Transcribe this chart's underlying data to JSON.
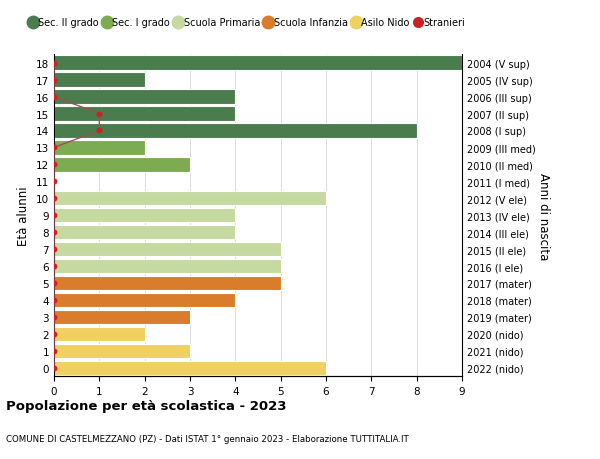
{
  "ages": [
    18,
    17,
    16,
    15,
    14,
    13,
    12,
    11,
    10,
    9,
    8,
    7,
    6,
    5,
    4,
    3,
    2,
    1,
    0
  ],
  "years": [
    "2004 (V sup)",
    "2005 (IV sup)",
    "2006 (III sup)",
    "2007 (II sup)",
    "2008 (I sup)",
    "2009 (III med)",
    "2010 (II med)",
    "2011 (I med)",
    "2012 (V ele)",
    "2013 (IV ele)",
    "2014 (III ele)",
    "2015 (II ele)",
    "2016 (I ele)",
    "2017 (mater)",
    "2018 (mater)",
    "2019 (mater)",
    "2020 (nido)",
    "2021 (nido)",
    "2022 (nido)"
  ],
  "values": [
    9,
    2,
    4,
    4,
    8,
    2,
    3,
    0,
    6,
    4,
    4,
    5,
    5,
    5,
    4,
    3,
    2,
    3,
    6
  ],
  "bar_colors": [
    "#4a7c4e",
    "#4a7c4e",
    "#4a7c4e",
    "#4a7c4e",
    "#4a7c4e",
    "#7dab52",
    "#7dab52",
    "#7dab52",
    "#c5d9a0",
    "#c5d9a0",
    "#c5d9a0",
    "#c5d9a0",
    "#c5d9a0",
    "#d97c2b",
    "#d97c2b",
    "#d97c2b",
    "#f0d060",
    "#f0d060",
    "#f0d060"
  ],
  "stranieri_ages": [
    18,
    17,
    16,
    15,
    14,
    13,
    12,
    11,
    10,
    9,
    8,
    7,
    6,
    5,
    4,
    3,
    2,
    1,
    0
  ],
  "stranieri_values": [
    0,
    0,
    0,
    1,
    1,
    0,
    0,
    0,
    0,
    0,
    0,
    0,
    0,
    0,
    0,
    0,
    0,
    0,
    0
  ],
  "legend_labels": [
    "Sec. II grado",
    "Sec. I grado",
    "Scuola Primaria",
    "Scuola Infanzia",
    "Asilo Nido",
    "Stranieri"
  ],
  "legend_colors": [
    "#4a7c4e",
    "#7dab52",
    "#c5d9a0",
    "#d97c2b",
    "#f0d060",
    "#cc2222"
  ],
  "ylabel_left": "Età alunni",
  "ylabel_right": "Anni di nascita",
  "title": "Popolazione per età scolastica - 2023",
  "subtitle": "COMUNE DI CASTELMEZZANO (PZ) - Dati ISTAT 1° gennaio 2023 - Elaborazione TUTTITALIA.IT",
  "xlim": [
    0,
    9
  ],
  "background_color": "#ffffff",
  "grid_color": "#cccccc",
  "bar_edge_color": "#ffffff",
  "stranieri_line_color": "#a05050",
  "stranieri_dot_color": "#cc2222"
}
